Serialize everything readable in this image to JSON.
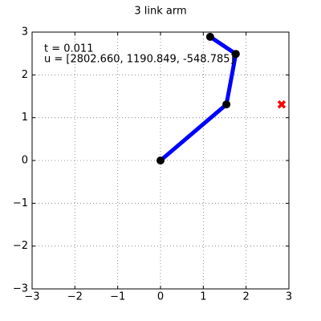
{
  "chart_data": {
    "type": "line",
    "title": "3 link arm",
    "annotations": [
      "t = 0.011",
      "u = [2802.660, 1190.849, -548.785]"
    ],
    "series": [
      {
        "x": [
          0,
          1.54,
          1.76,
          1.16
        ],
        "values": [
          0,
          1.31,
          2.49,
          2.89
        ],
        "color": "#0000ff",
        "marker": "o",
        "marker_color": "#000000",
        "line": true
      },
      {
        "x": [
          2.83
        ],
        "values": [
          1.31
        ],
        "color": "#ff0000",
        "marker": "X",
        "line": false
      }
    ],
    "xlim": [
      -3,
      3
    ],
    "ylim": [
      -3,
      3
    ],
    "xticks": [
      {
        "value": -3,
        "label": "−3"
      },
      {
        "value": -2,
        "label": "−2"
      },
      {
        "value": -1,
        "label": "−1"
      },
      0,
      1,
      2,
      3
    ],
    "yticks": [
      {
        "value": -3,
        "label": "−3"
      },
      {
        "value": -2,
        "label": "−2"
      },
      {
        "value": -1,
        "label": "−1"
      },
      0,
      1,
      2,
      3
    ],
    "grid": true
  }
}
